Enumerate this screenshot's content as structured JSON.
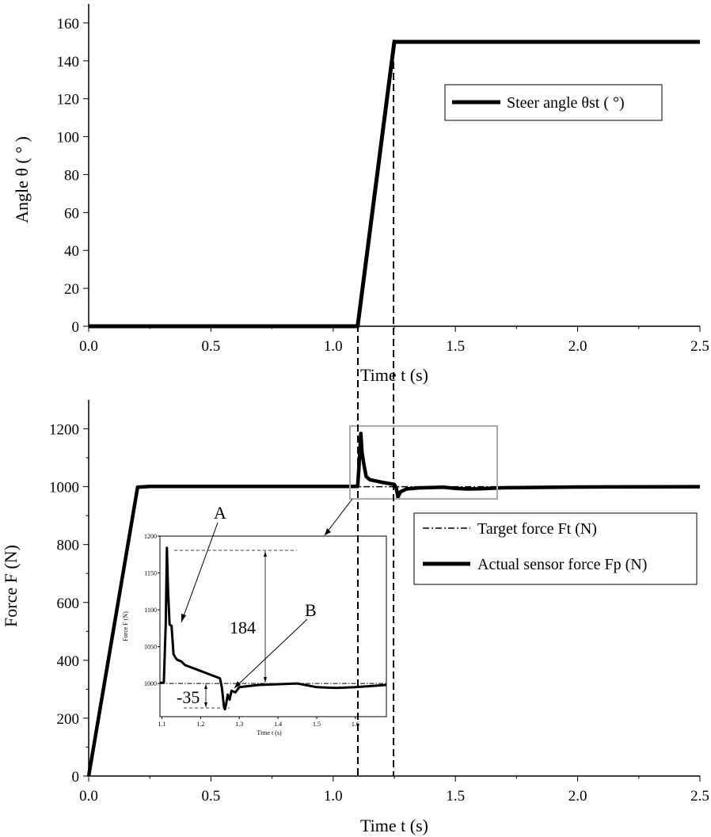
{
  "chart_data": [
    {
      "type": "line",
      "xlabel": "Time  t (s)",
      "ylabel": "Angle  θ ( ° )",
      "xlim": [
        0,
        2.5
      ],
      "ylim": [
        0,
        170
      ],
      "xticks": [
        "0.0",
        "0.5",
        "1.0",
        "1.5",
        "2.0",
        "2.5"
      ],
      "yticks": [
        "0",
        "20",
        "40",
        "60",
        "80",
        "100",
        "120",
        "140",
        "160"
      ],
      "legend_position": "top-right",
      "series": [
        {
          "name": "Steer angle θst ( °)",
          "x": [
            0,
            1.1,
            1.25,
            2.5
          ],
          "y": [
            0,
            0,
            150,
            150
          ]
        }
      ]
    },
    {
      "type": "line",
      "xlabel": "Time  t (s)",
      "ylabel": "Force  F (N)",
      "xlim": [
        0,
        2.5
      ],
      "ylim": [
        0,
        1300
      ],
      "xticks": [
        "0.0",
        "0.5",
        "1.0",
        "1.5",
        "2.0",
        "2.5"
      ],
      "yticks": [
        "0",
        "200",
        "400",
        "600",
        "800",
        "1000",
        "1200"
      ],
      "legend_position": "right",
      "series": [
        {
          "name": "Target force  Ft (N)",
          "x": [
            0,
            0.2,
            2.5
          ],
          "y": [
            0,
            1000,
            1000
          ]
        },
        {
          "name": "Actual sensor force  Fp (N)",
          "x": [
            0,
            0.2,
            0.25,
            1.1,
            1.105,
            1.113,
            1.118,
            1.125,
            1.135,
            1.15,
            1.2,
            1.25,
            1.258,
            1.265,
            1.275,
            1.3,
            1.35,
            1.45,
            1.5,
            1.55,
            1.6,
            1.68,
            2.0,
            2.5
          ],
          "y": [
            0,
            998,
            1001,
            1001,
            1060,
            1184,
            1120,
            1080,
            1035,
            1024,
            1015,
            1008,
            995,
            964,
            982,
            992,
            996,
            998,
            994,
            992,
            993,
            996,
            999,
            1000
          ]
        }
      ]
    },
    {
      "type": "line",
      "inset": true,
      "xlabel": "Time  t (s)",
      "ylabel": "Force  F (N)",
      "xlim": [
        1.095,
        1.68
      ],
      "ylim": [
        955,
        1200
      ],
      "xticks": [
        "1.1",
        "1.2",
        "1.3",
        "1.4",
        "1.5",
        "1.6"
      ],
      "yticks": [
        "1000",
        "1050",
        "1100",
        "1150",
        "1200"
      ],
      "series": [
        {
          "name": "Target force",
          "x": [
            1.095,
            1.68
          ],
          "y": [
            1000,
            1000
          ]
        },
        {
          "name": "Actual sensor force",
          "x": [
            1.095,
            1.105,
            1.11,
            1.113,
            1.116,
            1.12,
            1.125,
            1.13,
            1.135,
            1.14,
            1.15,
            1.16,
            1.2,
            1.25,
            1.255,
            1.26,
            1.263,
            1.266,
            1.27,
            1.275,
            1.28,
            1.29,
            1.3,
            1.35,
            1.45,
            1.47,
            1.5,
            1.55,
            1.6,
            1.68
          ],
          "y": [
            1001,
            1001,
            1080,
            1184,
            1125,
            1080,
            1078,
            1040,
            1035,
            1032,
            1030,
            1025,
            1017,
            1007,
            995,
            970,
            965,
            972,
            985,
            978,
            990,
            988,
            995,
            998,
            1000,
            998,
            995,
            994,
            995,
            998
          ]
        }
      ],
      "annotations": [
        "A",
        "B",
        "184",
        "-35"
      ]
    }
  ]
}
